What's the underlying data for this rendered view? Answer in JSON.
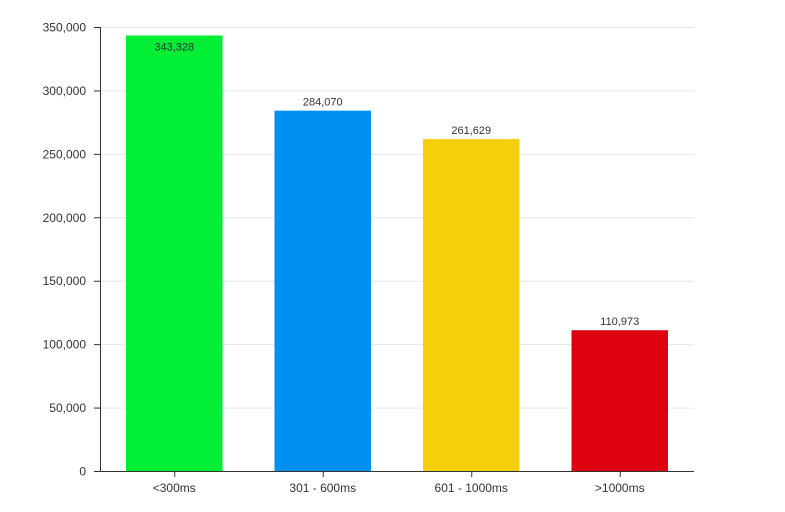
{
  "chart_data": {
    "type": "bar",
    "categories": [
      "<300ms",
      "301 - 600ms",
      "601 - 1000ms",
      ">1000ms"
    ],
    "values": [
      343328,
      284070,
      261629,
      110973
    ],
    "value_labels": [
      "343,328",
      "284,070",
      "261,629",
      "110,973"
    ],
    "colors": [
      "#00ee33",
      "#0090f2",
      "#f5cf0a",
      "#de0010"
    ],
    "ylim": [
      0,
      350000
    ],
    "yticks": [
      0,
      50000,
      100000,
      150000,
      200000,
      250000,
      300000,
      350000
    ],
    "ytick_labels": [
      "0",
      "50,000",
      "100,000",
      "150,000",
      "200,000",
      "250,000",
      "300,000",
      "350,000"
    ],
    "grid": true,
    "title": "",
    "xlabel": "",
    "ylabel": ""
  }
}
